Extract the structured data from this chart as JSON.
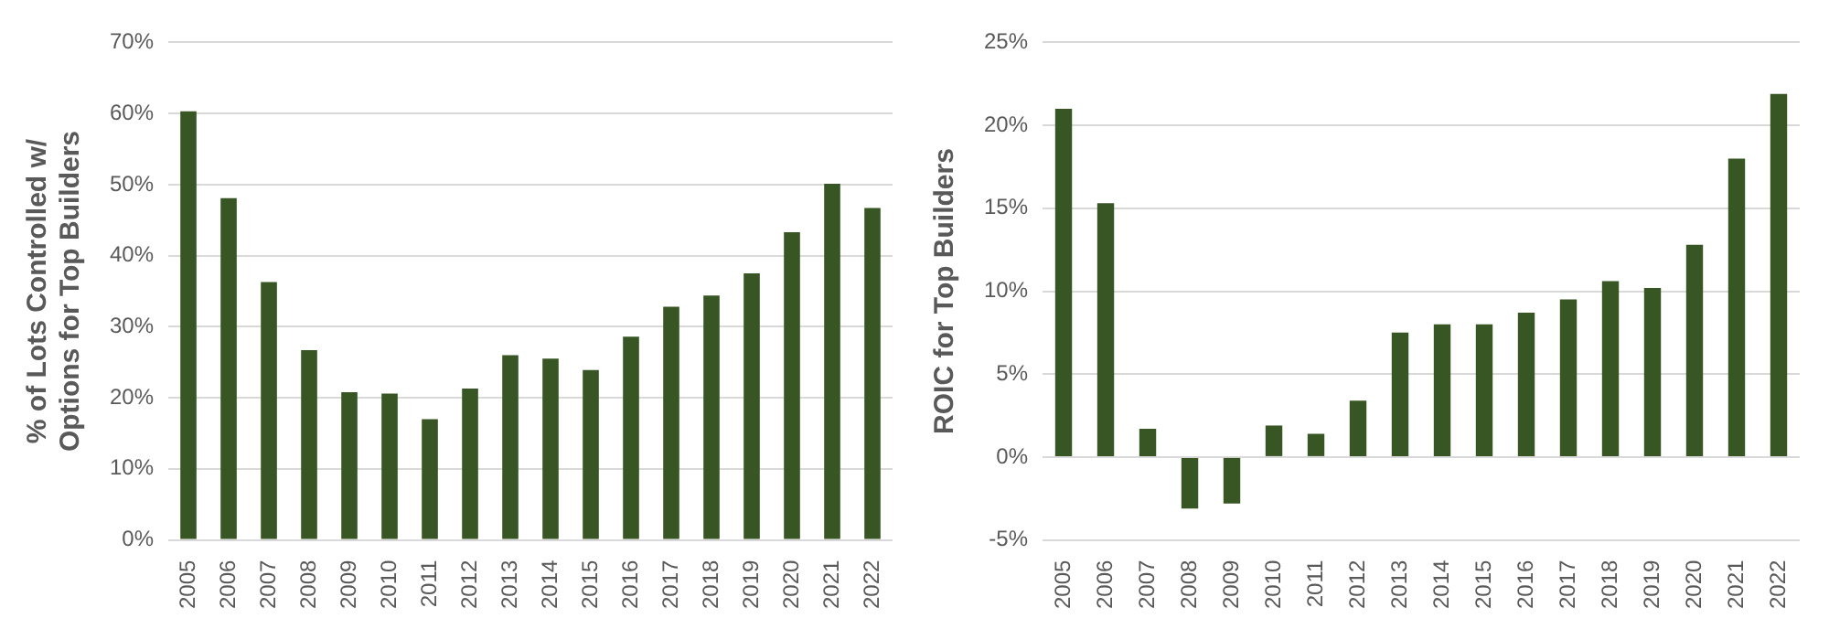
{
  "chart_data": [
    {
      "type": "bar",
      "ylabel": "% of Lots Controlled w/ Options for Top Builders",
      "categories": [
        "2005",
        "2006",
        "2007",
        "2008",
        "2009",
        "2010",
        "2011",
        "2012",
        "2013",
        "2014",
        "2015",
        "2016",
        "2017",
        "2018",
        "2019",
        "2020",
        "2021",
        "2022"
      ],
      "series": [
        {
          "color": "#375623",
          "values": [
            60.3,
            48.1,
            36.3,
            26.7,
            20.8,
            20.6,
            17.0,
            21.3,
            26.0,
            25.5,
            23.9,
            28.6,
            32.8,
            34.4,
            37.5,
            43.3,
            50.1,
            46.7
          ]
        }
      ],
      "ylim": [
        0,
        70
      ],
      "yticks": [
        {
          "value": 0,
          "label": "0%"
        },
        {
          "value": 10,
          "label": "10%"
        },
        {
          "value": 20,
          "label": "20%"
        },
        {
          "value": 30,
          "label": "30%"
        },
        {
          "value": 40,
          "label": "40%"
        },
        {
          "value": 50,
          "label": "50%"
        },
        {
          "value": 60,
          "label": "60%"
        },
        {
          "value": 70,
          "label": "70%"
        }
      ],
      "grid": "y",
      "legend": false
    },
    {
      "type": "bar",
      "ylabel": "ROIC for Top Builders",
      "categories": [
        "2005",
        "2006",
        "2007",
        "2008",
        "2009",
        "2010",
        "2011",
        "2012",
        "2013",
        "2014",
        "2015",
        "2016",
        "2017",
        "2018",
        "2019",
        "2020",
        "2021",
        "2022"
      ],
      "series": [
        {
          "color": "#375623",
          "values": [
            21.0,
            15.3,
            1.7,
            -3.1,
            -2.8,
            1.9,
            1.4,
            3.4,
            7.5,
            8.0,
            8.0,
            8.7,
            9.5,
            10.6,
            10.2,
            12.8,
            18.0,
            21.9
          ]
        }
      ],
      "ylim": [
        -5,
        25
      ],
      "yticks": [
        {
          "value": -5,
          "label": "-5%"
        },
        {
          "value": 0,
          "label": "0%"
        },
        {
          "value": 5,
          "label": "5%"
        },
        {
          "value": 10,
          "label": "10%"
        },
        {
          "value": 15,
          "label": "15%"
        },
        {
          "value": 20,
          "label": "20%"
        },
        {
          "value": 25,
          "label": "25%"
        }
      ],
      "grid": "y",
      "legend": false
    }
  ]
}
